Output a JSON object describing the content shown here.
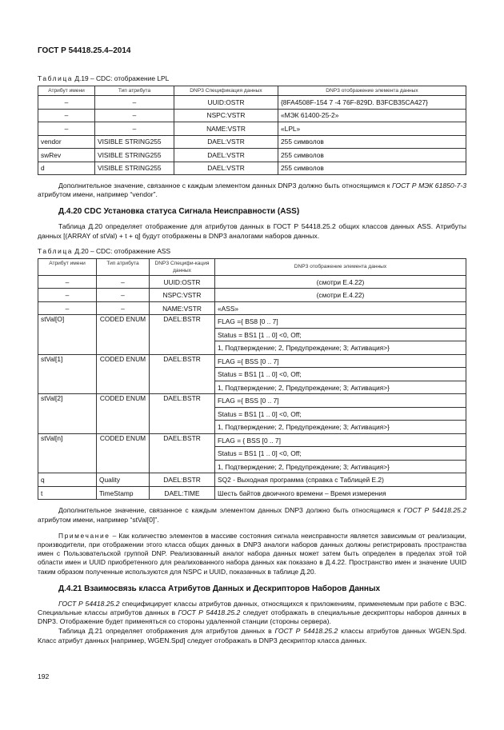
{
  "header": "ГОСТ Р 54418.25.4–2014",
  "table19": {
    "caption_prefix": "Таблица",
    "caption_rest": " Д.19 – CDC: отображение LPL",
    "columns": [
      "Атрибут имени",
      "Тип атрибута",
      "DNP3 Спецификация данных",
      "DNP3 отображение элемента данных"
    ],
    "rows": [
      [
        "–",
        "–",
        "UUID:OSTR",
        "{8FA4508F-154 7 -4 76F-829D. B3FCB35CA427}"
      ],
      [
        "–",
        "–",
        "NSPC:VSTR",
        "«МЭК 61400-25-2»"
      ],
      [
        "–",
        "–",
        "NAME:VSTR",
        "«LPL»"
      ],
      [
        "vendor",
        "VISIBLE STRING255",
        "DAEL:VSTR",
        "255 символов"
      ],
      [
        "swRev",
        "VISIBLE STRING255",
        "DAEL:VSTR",
        "255 символов"
      ],
      [
        "d",
        "VISIBLE STRING255",
        "DAEL:VSTR",
        "255 символов"
      ]
    ]
  },
  "para1": {
    "a": "Дополнительное значение, связанное с каждым элементом данных DNP3 должно быть относящимся к ",
    "ref": "ГОСТ Р МЭК 61850-7-3",
    "b": " атрибутом имени, например “vendor”."
  },
  "section420": {
    "title": "Д.4.20 CDC Установка статуса Сигнала Неисправности (ASS)",
    "text": "Таблица Д.20 определяет отображение для атрибутов данных в ГОСТ Р 54418.25.2 общих классов данных ASS. Атрибуты данных [(ARRAY of stVal) + t + q] будут отображены в DNP3 аналогами наборов данных."
  },
  "table20": {
    "caption_prefix": "Таблица",
    "caption_rest": " Д.20 – CDC: отображение ASS",
    "columns": [
      "Атрибут имени",
      "Тип атрибута",
      "DNP3 Специфи-кация данных",
      "DNP3 отображение элемента данных"
    ],
    "top_rows": [
      [
        "–",
        "–",
        "UUID:OSTR",
        "(смотри Е.4.22)"
      ],
      [
        "–",
        "–",
        "NSPC:VSTR",
        "(смотри Е.4.22)"
      ],
      [
        "–",
        "–",
        "NAME:VSTR",
        "«ASS»"
      ]
    ],
    "groups": [
      {
        "name": "stVal[O]",
        "type": "CODED ENUM",
        "spec": "DAEL:BSTR",
        "lines": [
          "FLAG ={ BS8 [0 .. 7]",
          "Status = BS1 [1 .. 0] <0, Off;",
          "1, Подтверждение; 2, Предупреждение; 3; Активация>}"
        ]
      },
      {
        "name": "stVal[1]",
        "type": "CODED ENUM",
        "spec": "DAEL:BSTR",
        "lines": [
          "FLAG ={ BSS [0 .. 7]",
          "Status = BS1 [1 .. 0] <0, Off;",
          "1, Подтверждение; 2, Предупреждение; 3; Активация>}"
        ]
      },
      {
        "name": "stVal[2]",
        "type": "CODED ENUM",
        "spec": "DAEL:BSTR",
        "lines": [
          "FLAG ={ BSS [0 .. 7]",
          "Status = BS1 [1 .. 0] <0, Off;",
          "1, Подтверждение; 2, Предупреждение; 3; Активация>}"
        ]
      },
      {
        "name": "stVal[n]",
        "type": "CODED ENUM",
        "spec": "DAEL:BSTR",
        "lines": [
          "FLAG = { BSS [0 .. 7]",
          "Status = BS1 [1 .. 0] <0, Off;",
          "1, Подтверждение; 2, Предупреждение; 3; Активация>}"
        ]
      }
    ],
    "bottom_rows": [
      [
        "q",
        "Quality",
        "DAEL:BSTR",
        "SQ2 - Выходная программа (справка с  Таблицей Е.2)"
      ],
      [
        "t",
        "TimeStamp",
        "DAEL:TIME",
        "Шесть байтов двоичного времени – Время измерения"
      ]
    ]
  },
  "para2": {
    "a": "Дополнительное значение, связанное с каждым элементом данных DNP3 должно быть относящимся к ",
    "ref": "ГОСТ Р 54418.25.2",
    "b": " атрибутом имени, например “stVal[0]”."
  },
  "note": {
    "label": "Примечание",
    "text": " – Как количество элементов в массиве состояния сигнала неисправности является зависимым от реализации, производители, при отображении этого класса общих данных в DNP3 аналоги наборов данных должны регистрировать пространства имен с Пользовательской группой DNP. Реализованный аналог набора данных может затем быть определен в пределах этой той области имен и UUID приобретенного для реалихованного набора данных как показано в Д.4.22. Пространство имен и значение UUID таким образом полученные используются для NSPC и UUID, показанных в таблице Д.20."
  },
  "section421": {
    "title": "Д.4.21 Взаимосвязь класса Атрибутов Данных и Дескрипторов Наборов Данных",
    "p1": {
      "ref1": "ГОСТ Р 54418.25.2",
      "a": " специфицирует классы атрибутов данных, относящихся к приложениям, применяемым при работе с ВЭС. Специальные классы атрибутов данных в ",
      "ref2": "ГОСТ Р 54418.25.2",
      "b": " следует отображать в специальные дескрипторы наборов данных в DNP3. Отображение будет применяться со стороны удаленной станции (стороны сервера)."
    },
    "p2": {
      "a": "Таблица Д.21 определяет отображения для атрибутов данных в ",
      "ref": "ГОСТ Р 54418.25.2",
      "b": " классы атрибутов данных WGEN.Spd. Класс атрибут данных [например, WGEN.Spd] следует отображать в DNP3 дескриптор класса данных."
    }
  },
  "page_number": "192"
}
